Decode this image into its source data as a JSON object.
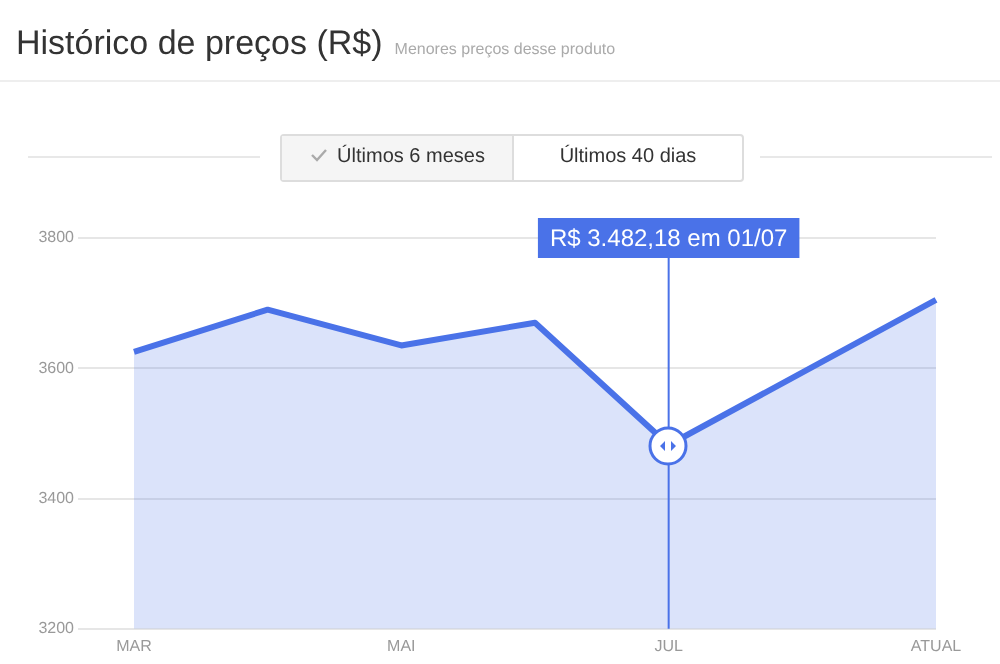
{
  "chart_data": {
    "type": "area",
    "title": "Histórico de preços (R$)",
    "subtitle": "Menores preços desse produto",
    "categories": [
      "MAR",
      null,
      "MAI",
      null,
      "JUL",
      null,
      "ATUAL"
    ],
    "series": [
      {
        "color": "#4a72e8",
        "values": [
          3625,
          3690,
          3635,
          3670,
          3482.18,
          null,
          3705
        ]
      }
    ],
    "ylim": [
      3200,
      3800
    ],
    "yticks": [
      3200,
      3400,
      3600,
      3800
    ],
    "grid": "y",
    "legend": false,
    "marker": "none",
    "line_style": "solid",
    "ref_lines": [
      {
        "axis": "x",
        "value": "JUL",
        "label": "R$ 3.482,18 em 01/07",
        "color": "#4a72e8"
      }
    ],
    "annotations": [
      "Últimos 6 meses",
      "Últimos 40 dias"
    ]
  }
}
